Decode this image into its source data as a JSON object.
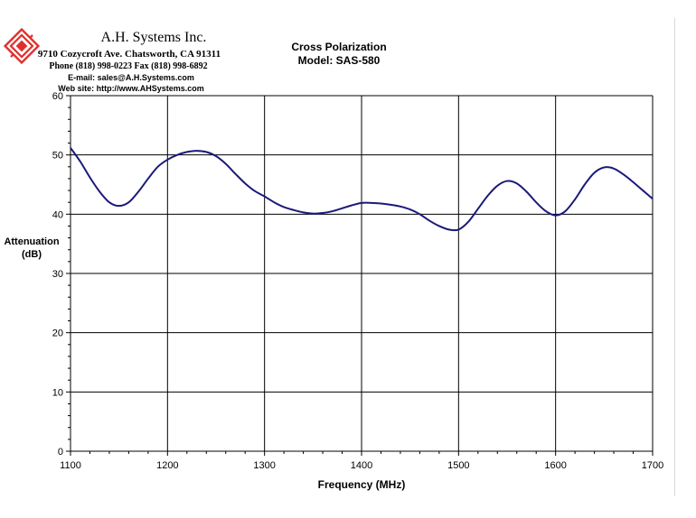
{
  "header": {
    "company": "A.H. Systems Inc.",
    "address": "9710 Cozycroft Ave. Chatsworth, CA 91311",
    "phone": "Phone (818) 998-0223 Fax (818) 998-6892",
    "email": "E-mail: sales@A.H.Systems.com",
    "website": "Web site: http://www.AHSystems.com",
    "logo_icon": "ahs-logo-icon",
    "logo_color": "#e0302c"
  },
  "chart_data": {
    "type": "line",
    "title": "Cross Polarization",
    "subtitle": "Model: SAS-580",
    "xlabel": "Frequency (MHz)",
    "ylabel": [
      "Attenuation",
      "(dB)"
    ],
    "xlim": [
      1100,
      1700
    ],
    "ylim": [
      0,
      60
    ],
    "xticks": [
      "1100",
      "1200",
      "1300",
      "1400",
      "1500",
      "1600",
      "1700"
    ],
    "yticks": [
      "0",
      "10",
      "20",
      "30",
      "40",
      "50",
      "60"
    ],
    "grid": true,
    "series_color": "#1a1a7a",
    "series": [
      {
        "x": [
          1100,
          1110,
          1120,
          1130,
          1140,
          1150,
          1160,
          1170,
          1180,
          1190,
          1200,
          1210,
          1220,
          1230,
          1240,
          1250,
          1260,
          1270,
          1280,
          1290,
          1300,
          1310,
          1320,
          1330,
          1340,
          1350,
          1360,
          1370,
          1380,
          1390,
          1400,
          1410,
          1420,
          1430,
          1440,
          1450,
          1460,
          1470,
          1480,
          1490,
          1500,
          1510,
          1520,
          1530,
          1540,
          1550,
          1560,
          1570,
          1580,
          1590,
          1600,
          1610,
          1620,
          1630,
          1640,
          1650,
          1660,
          1670,
          1680,
          1690,
          1700
        ],
        "values": [
          51.2,
          48.9,
          46.2,
          43.8,
          42.0,
          41.4,
          42.0,
          43.8,
          46.0,
          48.0,
          49.2,
          50.0,
          50.5,
          50.7,
          50.5,
          49.8,
          48.5,
          46.8,
          45.2,
          43.9,
          43.0,
          42.0,
          41.2,
          40.7,
          40.3,
          40.1,
          40.2,
          40.5,
          41.0,
          41.5,
          41.9,
          41.9,
          41.8,
          41.6,
          41.3,
          40.8,
          40.0,
          38.9,
          38.0,
          37.4,
          37.4,
          38.7,
          40.9,
          43.1,
          44.8,
          45.6,
          45.2,
          43.8,
          42.0,
          40.5,
          39.8,
          40.5,
          42.5,
          45.0,
          47.0,
          47.9,
          47.7,
          46.7,
          45.4,
          44.0,
          42.6
        ]
      }
    ]
  }
}
